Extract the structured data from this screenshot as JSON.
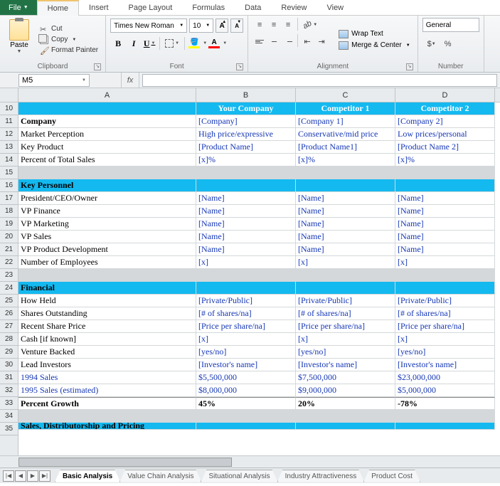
{
  "tabs": {
    "file": "File",
    "home": "Home",
    "insert": "Insert",
    "pagelayout": "Page Layout",
    "formulas": "Formulas",
    "data": "Data",
    "review": "Review",
    "view": "View"
  },
  "clipboard": {
    "paste": "Paste",
    "cut": "Cut",
    "copy": "Copy",
    "formatpainter": "Format Painter",
    "group": "Clipboard"
  },
  "font": {
    "name": "Times New Roman",
    "size": "10",
    "group": "Font"
  },
  "align": {
    "wrap": "Wrap Text",
    "merge": "Merge & Center",
    "group": "Alignment"
  },
  "number": {
    "format": "General",
    "group": "Number"
  },
  "namebox": "M5",
  "cols": [
    "A",
    "B",
    "C",
    "D"
  ],
  "rownums": [
    10,
    11,
    12,
    13,
    14,
    15,
    16,
    17,
    18,
    19,
    20,
    21,
    22,
    23,
    24,
    25,
    26,
    27,
    28,
    29,
    30,
    31,
    32,
    33,
    34,
    35
  ],
  "header": {
    "b": "Your Company",
    "c": "Competitor 1",
    "d": "Competitor 2"
  },
  "r11": {
    "a": "Company",
    "b": "[Company]",
    "c": "[Company 1]",
    "d": "[Company 2]"
  },
  "r12": {
    "a": "Market Perception",
    "b": "High price/expressive",
    "c": "Conservative/mid price",
    "d": "Low prices/personal"
  },
  "r13": {
    "a": "Key Product",
    "b": "[Product Name]",
    "c": "[Product Name1]",
    "d": "[Product Name 2]"
  },
  "r14": {
    "a": "Percent of Total Sales",
    "b": "[x]%",
    "c": "[x]%",
    "d": "[x]%"
  },
  "r16": {
    "a": "Key Personnel"
  },
  "r17": {
    "a": "President/CEO/Owner",
    "b": "[Name]",
    "c": "[Name]",
    "d": "[Name]"
  },
  "r18": {
    "a": "VP Finance",
    "b": "[Name]",
    "c": "[Name]",
    "d": "[Name]"
  },
  "r19": {
    "a": "VP Marketing",
    "b": "[Name]",
    "c": "[Name]",
    "d": "[Name]"
  },
  "r20": {
    "a": "VP Sales",
    "b": "[Name]",
    "c": "[Name]",
    "d": "[Name]"
  },
  "r21": {
    "a": "VP Product Development",
    "b": "[Name]",
    "c": "[Name]",
    "d": "[Name]"
  },
  "r22": {
    "a": "Number of Employees",
    "b": "[x]",
    "c": "[x]",
    "d": "[x]"
  },
  "r24": {
    "a": "Financial"
  },
  "r25": {
    "a": "How Held",
    "b": "[Private/Public]",
    "c": "[Private/Public]",
    "d": "[Private/Public]"
  },
  "r26": {
    "a": "Shares Outstanding",
    "b": "[# of shares/na]",
    "c": "[# of shares/na]",
    "d": "[# of shares/na]"
  },
  "r27": {
    "a": "Recent Share Price",
    "b": "[Price per share/na]",
    "c": "[Price per share/na]",
    "d": "[Price per share/na]"
  },
  "r28": {
    "a": "Cash [if known]",
    "b": "[x]",
    "c": "[x]",
    "d": "[x]"
  },
  "r29": {
    "a": "Venture Backed",
    "b": "[yes/no]",
    "c": "[yes/no]",
    "d": "[yes/no]"
  },
  "r30": {
    "a": "Lead Investors",
    "b": "[Investor's name]",
    "c": "[Investor's name]",
    "d": "[Investor's name]"
  },
  "r31": {
    "a": "1994 Sales",
    "b": "$5,500,000",
    "c": "$7,500,000",
    "d": "$23,000,000"
  },
  "r32": {
    "a": "1995 Sales (estimated)",
    "b": "$8,000,000",
    "c": "$9,000,000",
    "d": "$5,000,000"
  },
  "r33": {
    "a": "Percent Growth",
    "b": "45%",
    "c": "20%",
    "d": "-78%"
  },
  "r35": {
    "a": "Sales, Distributorship and Pricing"
  },
  "sheets": [
    "Basic Analysis",
    "Value Chain Analysis",
    "Situational Analysis",
    "Industry Attractiveness",
    "Product Cost"
  ]
}
